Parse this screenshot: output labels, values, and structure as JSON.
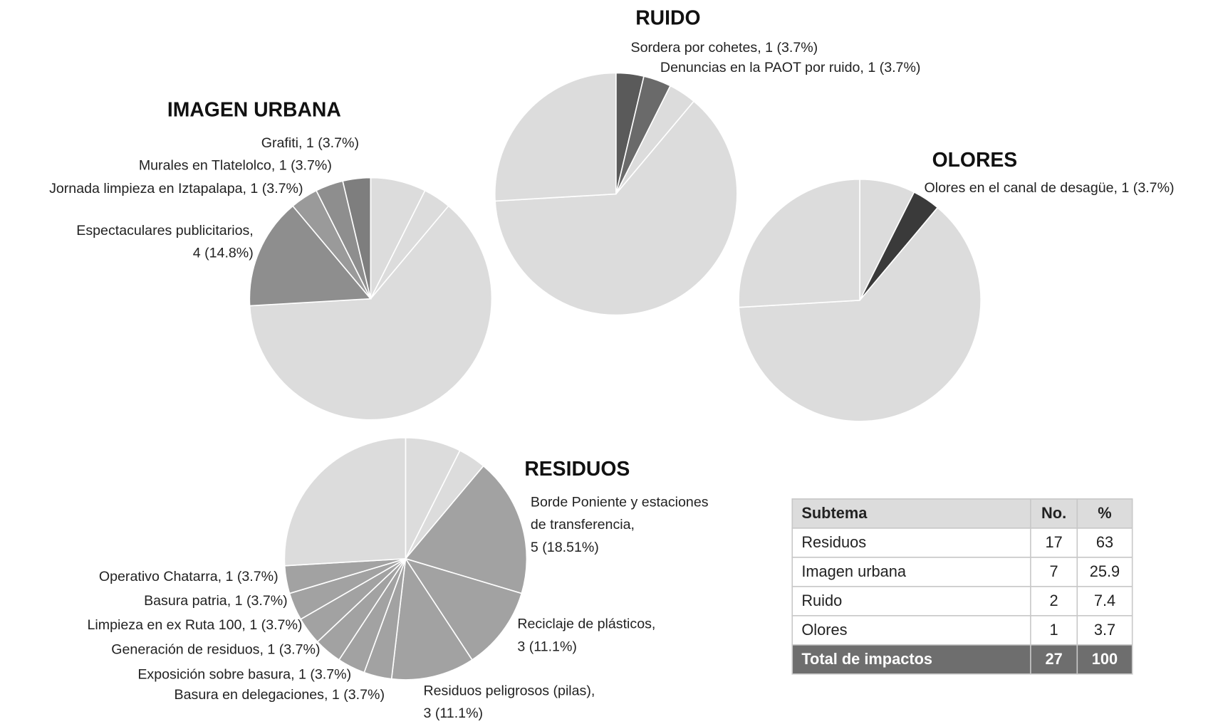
{
  "chart_data": [
    {
      "type": "pie",
      "title": "IMAGEN URBANA",
      "labels": [
        null,
        null,
        null,
        [
          "Espectaculares publicitarios,",
          "4 (14.8%)"
        ],
        [
          "Jornada limpieza en Iztapalapa, 1 (3.7%)"
        ],
        [
          "Murales en Tlatelolco, 1 (3.7%)"
        ],
        [
          "Grafiti, 1 (3.7%)"
        ]
      ],
      "values": [
        2,
        1,
        17,
        4,
        1,
        1,
        1
      ],
      "colors": [
        "#dcdcdc",
        "#dcdcdc",
        "#dcdcdc",
        "#8e8e8e",
        "#9a9a9a",
        "#8e8e8e",
        "#7e7e7e"
      ]
    },
    {
      "type": "pie",
      "title": "RUIDO",
      "labels": [
        [
          "Sordera por cohetes, 1 (3.7%)"
        ],
        [
          "Denuncias en la PAOT por ruido, 1 (3.7%)"
        ],
        null,
        null,
        null
      ],
      "values": [
        1,
        1,
        1,
        17,
        7
      ],
      "colors": [
        "#5a5a5a",
        "#6a6a6a",
        "#dcdcdc",
        "#dcdcdc",
        "#dcdcdc"
      ]
    },
    {
      "type": "pie",
      "title": "OLORES",
      "labels": [
        null,
        [
          "Olores en el canal de desagüe, 1 (3.7%)"
        ],
        null,
        null
      ],
      "values": [
        2,
        1,
        17,
        7
      ],
      "colors": [
        "#dcdcdc",
        "#3a3a3a",
        "#dcdcdc",
        "#dcdcdc"
      ]
    },
    {
      "type": "pie",
      "title": "RESIDUOS",
      "labels": [
        null,
        null,
        [
          "Borde Poniente y estaciones",
          "de transferencia,",
          "5 (18.51%)"
        ],
        [
          "Reciclaje de plásticos,",
          "3 (11.1%)"
        ],
        [
          "Residuos peligrosos (pilas),",
          "3 (11.1%)"
        ],
        [
          "Basura en delegaciones, 1 (3.7%)"
        ],
        [
          "Exposición sobre basura, 1 (3.7%)"
        ],
        [
          "Generación de residuos, 1 (3.7%)"
        ],
        [
          "Limpieza en ex Ruta 100, 1 (3.7%)"
        ],
        [
          "Basura patria, 1 (3.7%)"
        ],
        [
          "Operativo Chatarra, 1 (3.7%)"
        ],
        null
      ],
      "values": [
        2,
        1,
        5,
        3,
        3,
        1,
        1,
        1,
        1,
        1,
        1,
        7
      ],
      "colors": [
        "#dcdcdc",
        "#dcdcdc",
        "#a2a2a2",
        "#a2a2a2",
        "#a2a2a2",
        "#a2a2a2",
        "#a2a2a2",
        "#a2a2a2",
        "#a2a2a2",
        "#a2a2a2",
        "#a2a2a2",
        "#dcdcdc"
      ]
    }
  ],
  "table": {
    "header": [
      "Subtema",
      "No.",
      "%"
    ],
    "rows": [
      [
        "Residuos",
        17,
        63
      ],
      [
        "Imagen urbana",
        7,
        25.9
      ],
      [
        "Ruido",
        2,
        7.4
      ],
      [
        "Olores",
        1,
        3.7
      ]
    ],
    "total": [
      "Total de impactos",
      27,
      100
    ]
  }
}
